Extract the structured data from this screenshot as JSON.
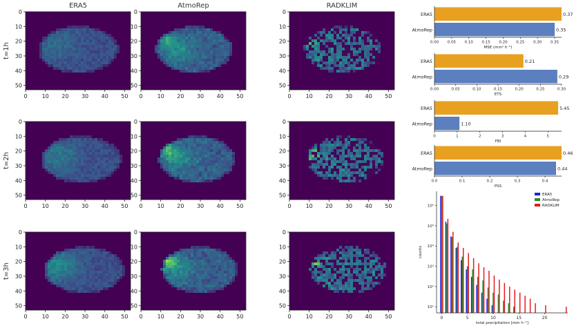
{
  "chart_data": [
    {
      "type": "heatmap",
      "columns": [
        "ERA5",
        "AtmoRep",
        "RADKLIM"
      ],
      "rows": [
        "t=1h",
        "t=2h",
        "t=3h"
      ],
      "x_ticks": [
        0,
        10,
        20,
        30,
        40,
        50
      ],
      "y_ticks": [
        0,
        10,
        20,
        30,
        40,
        50
      ],
      "xlim": [
        0,
        53
      ],
      "ylim": [
        53,
        0
      ],
      "colormap": [
        "#440154",
        "#3b528b",
        "#21918c",
        "#5ec962",
        "#fde725"
      ]
    },
    {
      "type": "bar",
      "orientation": "horizontal",
      "categories": [
        "ERA5",
        "AtmoRep"
      ],
      "values": [
        0.37,
        0.35
      ],
      "value_labels": [
        "0.37",
        "0.35"
      ],
      "xlabel": "MSE (mm² h⁻²)",
      "x_ticks": [
        "0.00",
        "0.05",
        "0.10",
        "0.15",
        "0.20",
        "0.25",
        "0.30",
        "0.35"
      ],
      "xlim": [
        0,
        0.37
      ]
    },
    {
      "type": "bar",
      "orientation": "horizontal",
      "categories": [
        "ERA5",
        "AtmoRep"
      ],
      "values": [
        0.21,
        0.29
      ],
      "value_labels": [
        "0.21",
        "0.29"
      ],
      "xlabel": "ETS",
      "x_ticks": [
        "0.00",
        "0.05",
        "0.10",
        "0.15",
        "0.20",
        "0.25",
        "0.30"
      ],
      "xlim": [
        0,
        0.3
      ]
    },
    {
      "type": "bar",
      "orientation": "horizontal",
      "categories": [
        "ERA5",
        "AtmoRep"
      ],
      "values": [
        5.45,
        1.1
      ],
      "value_labels": [
        "5.45",
        "1.10"
      ],
      "xlabel": "FBI",
      "x_ticks": [
        "0",
        "1",
        "2",
        "3",
        "4",
        "5"
      ],
      "xlim": [
        0,
        5.6
      ]
    },
    {
      "type": "bar",
      "orientation": "horizontal",
      "categories": [
        "ERA5",
        "AtmoRep"
      ],
      "values": [
        0.46,
        0.44
      ],
      "value_labels": [
        "0.46",
        "0.44"
      ],
      "xlabel": "PSS",
      "x_ticks": [
        "0.0",
        "0.1",
        "0.2",
        "0.3",
        "0.4"
      ],
      "xlim": [
        0,
        0.46
      ]
    },
    {
      "type": "bar",
      "log_y": true,
      "xlabel": "total precipitation [mm h⁻¹]",
      "ylabel": "counts",
      "x_ticks": [
        "0",
        "5",
        "10",
        "15",
        "20"
      ],
      "y_ticks": [
        "10¹",
        "10²",
        "10³",
        "10⁴",
        "10⁵",
        "10⁶"
      ],
      "xlim": [
        -1,
        24.5
      ],
      "ylim_log10": [
        0.7,
        6.7
      ],
      "legend_position": "top-right",
      "series": [
        {
          "name": "ERA5",
          "color": "#1f1fe8",
          "x": [
            0,
            1,
            2,
            3,
            4,
            5,
            6,
            7,
            8,
            9,
            10
          ],
          "values": [
            3000000,
            160000,
            30000,
            8000,
            2000,
            700,
            300,
            120,
            50,
            25,
            12
          ]
        },
        {
          "name": "AtmoRep",
          "color": "#2b8a2b",
          "x": [
            0,
            1,
            2,
            3,
            4,
            5,
            6,
            7,
            8,
            9,
            10,
            11,
            12,
            13,
            14
          ],
          "values": [
            3000000,
            130000,
            28000,
            9000,
            3000,
            1000,
            700,
            300,
            200,
            90,
            50,
            40,
            20,
            15,
            10
          ]
        },
        {
          "name": "RADKLIM",
          "color": "#e31a1c",
          "x": [
            0,
            1,
            2,
            3,
            4,
            5,
            6,
            7,
            8,
            9,
            10,
            11,
            12,
            13,
            14,
            15,
            16,
            17,
            18,
            20,
            24
          ],
          "values": [
            3000000,
            220000,
            50000,
            15000,
            8000,
            4500,
            2500,
            1400,
            900,
            600,
            350,
            220,
            150,
            100,
            70,
            50,
            35,
            25,
            15,
            12,
            10
          ]
        }
      ]
    }
  ]
}
